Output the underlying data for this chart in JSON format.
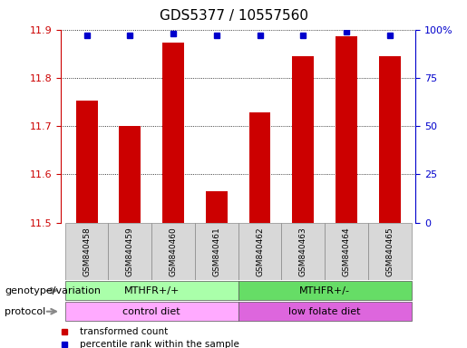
{
  "title": "GDS5377 / 10557560",
  "samples": [
    "GSM840458",
    "GSM840459",
    "GSM840460",
    "GSM840461",
    "GSM840462",
    "GSM840463",
    "GSM840464",
    "GSM840465"
  ],
  "transformed_counts": [
    11.753,
    11.7,
    11.873,
    11.565,
    11.728,
    11.845,
    11.887,
    11.845
  ],
  "percentile_ranks": [
    97,
    97,
    98,
    97,
    97,
    97,
    99,
    97
  ],
  "bar_bottom": 11.5,
  "ylim_left": [
    11.5,
    11.9
  ],
  "ylim_right": [
    0,
    100
  ],
  "yticks_left": [
    11.5,
    11.6,
    11.7,
    11.8,
    11.9
  ],
  "yticks_right": [
    0,
    25,
    50,
    75,
    100
  ],
  "ytick_labels_right": [
    "0",
    "25",
    "50",
    "75",
    "100%"
  ],
  "bar_color": "#cc0000",
  "dot_color": "#0000cc",
  "bar_width": 0.5,
  "genotype_groups": [
    {
      "label": "MTHFR+/+",
      "start": 0,
      "end": 3,
      "color": "#aaffaa"
    },
    {
      "label": "MTHFR+/-",
      "start": 4,
      "end": 7,
      "color": "#66dd66"
    }
  ],
  "protocol_groups": [
    {
      "label": "control diet",
      "start": 0,
      "end": 3,
      "color": "#ffaaff"
    },
    {
      "label": "low folate diet",
      "start": 4,
      "end": 7,
      "color": "#dd66dd"
    }
  ],
  "legend_items": [
    {
      "label": "transformed count",
      "color": "#cc0000"
    },
    {
      "label": "percentile rank within the sample",
      "color": "#0000cc"
    }
  ],
  "background_color": "#ffffff",
  "left_axis_color": "#cc0000",
  "right_axis_color": "#0000cc",
  "title_fontsize": 11,
  "tick_fontsize": 8,
  "label_fontsize": 8
}
